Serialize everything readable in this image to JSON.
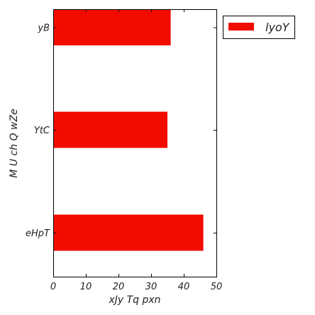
{
  "chart_data": {
    "type": "bar",
    "orientation": "horizontal",
    "categories": [
      "yB",
      "YtC",
      "eHpT"
    ],
    "series": [
      {
        "name": "lyoY",
        "values": [
          36,
          35,
          46
        ]
      }
    ],
    "xlabel": "xJy Tq pxn",
    "ylabel": "M U ch Q  wZe",
    "xlim": [
      0,
      50
    ],
    "xticks": [
      0,
      10,
      20,
      30,
      40,
      50
    ],
    "grid": false,
    "legend_position": "outside-top-right",
    "bar_color": "#f20c00"
  }
}
